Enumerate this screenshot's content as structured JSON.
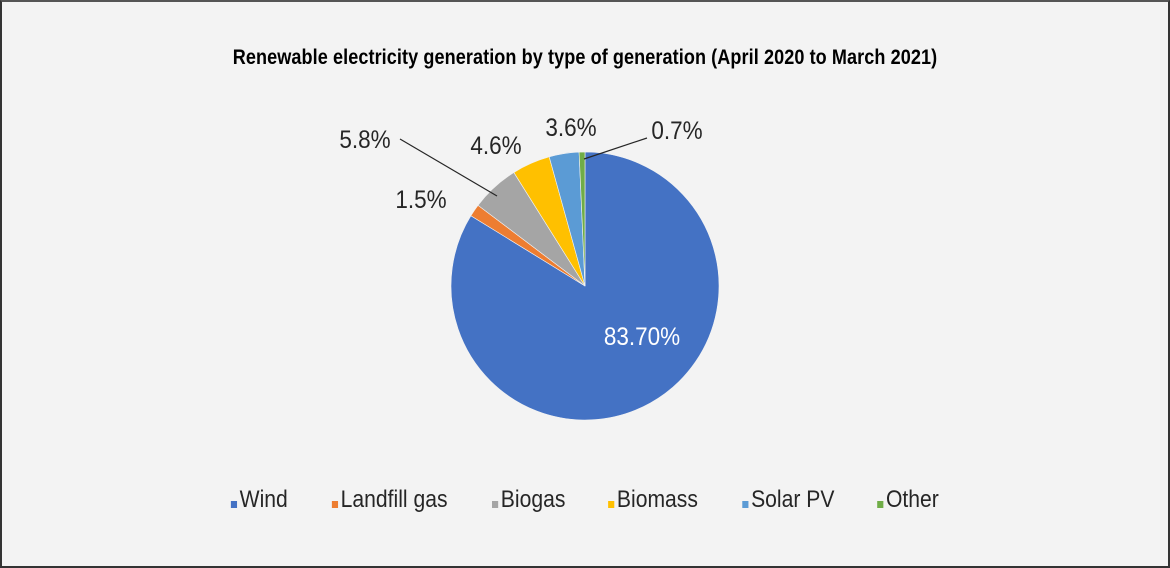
{
  "chart_data": {
    "type": "pie",
    "title": "Renewable electricity generation by type of generation (April 2020 to March 2021)",
    "categories": [
      "Wind",
      "Landfill gas",
      "Biogas",
      "Biomass",
      "Solar PV",
      "Other"
    ],
    "values": [
      83.7,
      1.5,
      5.8,
      4.6,
      3.6,
      0.7
    ],
    "data_labels": [
      "83.70%",
      "1.5%",
      "5.8%",
      "4.6%",
      "3.6%",
      "0.7%"
    ],
    "colors": [
      "#4472c4",
      "#ed7d31",
      "#a5a5a5",
      "#ffc000",
      "#5b9bd5",
      "#70ad47"
    ],
    "legend_position": "bottom",
    "start_angle": "12 o'clock",
    "direction": "clockwise"
  },
  "legend": {
    "items": [
      {
        "label": "Wind",
        "color": "#4472c4"
      },
      {
        "label": "Landfill gas",
        "color": "#ed7d31"
      },
      {
        "label": "Biogas",
        "color": "#a5a5a5"
      },
      {
        "label": "Biomass",
        "color": "#ffc000"
      },
      {
        "label": "Solar PV",
        "color": "#5b9bd5"
      },
      {
        "label": "Other",
        "color": "#70ad47"
      }
    ]
  }
}
